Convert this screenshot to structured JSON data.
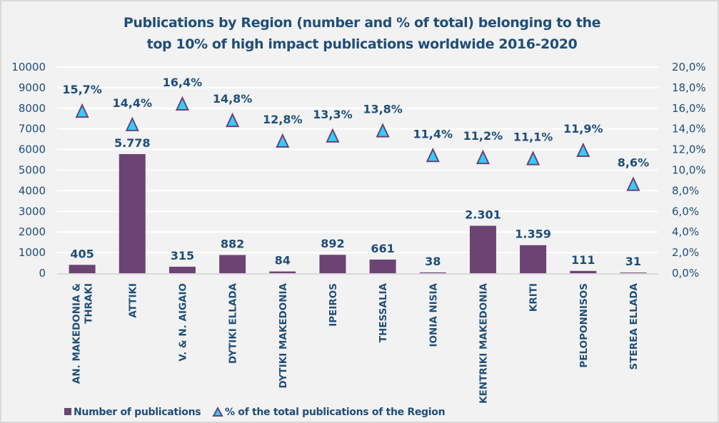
{
  "chart_data": {
    "type": "bar",
    "title_lines": [
      "Publications by Region (number and % of total) belonging to the",
      "top 10% of high impact publications worldwide 2016-2020"
    ],
    "categories": [
      "AN. MAKEDONIA &|THRAKI",
      "ATTIKI",
      "V. & N. AIGAIO",
      "DYTIKI ELLADA",
      "DYTIKI MAKEDONIA",
      "IPEIROS",
      "THESSALIA",
      "IONIA NISIA",
      "KENTRIKI MAKEDONIA",
      "KRITI",
      "PELOPONNISOS",
      "STEREA ELLADA"
    ],
    "series": [
      {
        "name": "Number of publications",
        "type": "bar",
        "axis": "left",
        "values": [
          405,
          5778,
          315,
          882,
          84,
          892,
          661,
          38,
          2301,
          1359,
          111,
          31
        ],
        "labels": [
          "405",
          "5.778",
          "315",
          "882",
          "84",
          "892",
          "661",
          "38",
          "2.301",
          "1.359",
          "111",
          "31"
        ],
        "color": "#6b4474"
      },
      {
        "name": "% of the total publications of the Region",
        "type": "scatter",
        "marker": "triangle",
        "axis": "right",
        "values": [
          15.7,
          14.4,
          16.4,
          14.8,
          12.8,
          13.3,
          13.8,
          11.4,
          11.2,
          11.1,
          11.9,
          8.6
        ],
        "labels": [
          "15,7%",
          "14,4%",
          "16,4%",
          "14,8%",
          "12,8%",
          "13,3%",
          "13,8%",
          "11,4%",
          "11,2%",
          "11,1%",
          "11,9%",
          "8,6%"
        ],
        "color": "#33ccff",
        "edge_color": "#6b4474"
      }
    ],
    "y_left": {
      "range": [
        0,
        10000
      ],
      "ticks": [
        "0",
        "1000",
        "2000",
        "3000",
        "4000",
        "5000",
        "6000",
        "7000",
        "8000",
        "9000",
        "10000"
      ]
    },
    "y_right": {
      "range": [
        0,
        20
      ],
      "ticks": [
        "0,0%",
        "2,0%",
        "4,0%",
        "6,0%",
        "8,0%",
        "10,0%",
        "12,0%",
        "14,0%",
        "16,0%",
        "18,0%",
        "20,0%"
      ]
    },
    "xlabel": "",
    "ylabel": "",
    "grid": true,
    "legend_position": "bottom-left",
    "text_color": "#1f4e79",
    "background": "#f2f2f2"
  }
}
